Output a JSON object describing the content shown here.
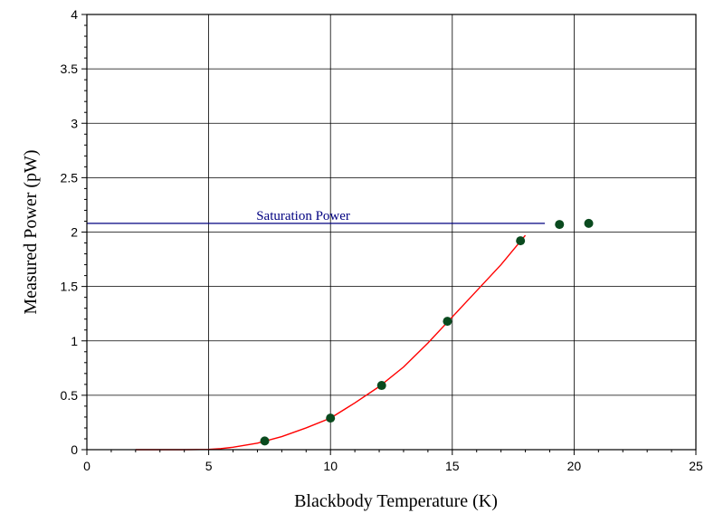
{
  "chart_data": {
    "type": "scatter",
    "xlabel": "Blackbody Temperature (K)",
    "ylabel": "Measured Power (pW)",
    "xlim": [
      0,
      25
    ],
    "ylim": [
      0,
      4
    ],
    "x_ticks": [
      0,
      5,
      10,
      15,
      20,
      25
    ],
    "y_ticks": [
      0,
      0.5,
      1,
      1.5,
      2,
      2.5,
      3,
      3.5,
      4
    ],
    "x_tick_labels": [
      "0",
      "5",
      "10",
      "15",
      "20",
      "25"
    ],
    "y_tick_labels": [
      "0",
      "0.5",
      "1",
      "1.5",
      "2",
      "2.5",
      "3",
      "3.5",
      "4"
    ],
    "grid": true,
    "series": [
      {
        "type": "scatter",
        "color": "#0a4a1e",
        "x": [
          7.3,
          10.0,
          12.1,
          14.8,
          17.8,
          19.4,
          20.6
        ],
        "y": [
          0.08,
          0.29,
          0.59,
          1.18,
          1.92,
          2.07,
          2.08
        ]
      },
      {
        "type": "line",
        "color": "#ff0000",
        "x": [
          2.0,
          3.0,
          4.0,
          5.0,
          5.5,
          6.0,
          7.0,
          8.0,
          9.0,
          10.0,
          11.0,
          12.0,
          13.0,
          14.0,
          15.0,
          16.0,
          17.0,
          18.0
        ],
        "y": [
          0.0,
          0.0,
          0.0,
          0.003,
          0.01,
          0.022,
          0.06,
          0.12,
          0.2,
          0.29,
          0.43,
          0.58,
          0.76,
          0.98,
          1.22,
          1.46,
          1.7,
          1.97
        ]
      }
    ],
    "reference_line": {
      "y": 2.08,
      "x_start": 0,
      "x_end": 18.8,
      "color": "#000080"
    },
    "annotations": [
      {
        "text": "Saturation  Power",
        "x": 10.0,
        "y": 2.08
      }
    ]
  }
}
